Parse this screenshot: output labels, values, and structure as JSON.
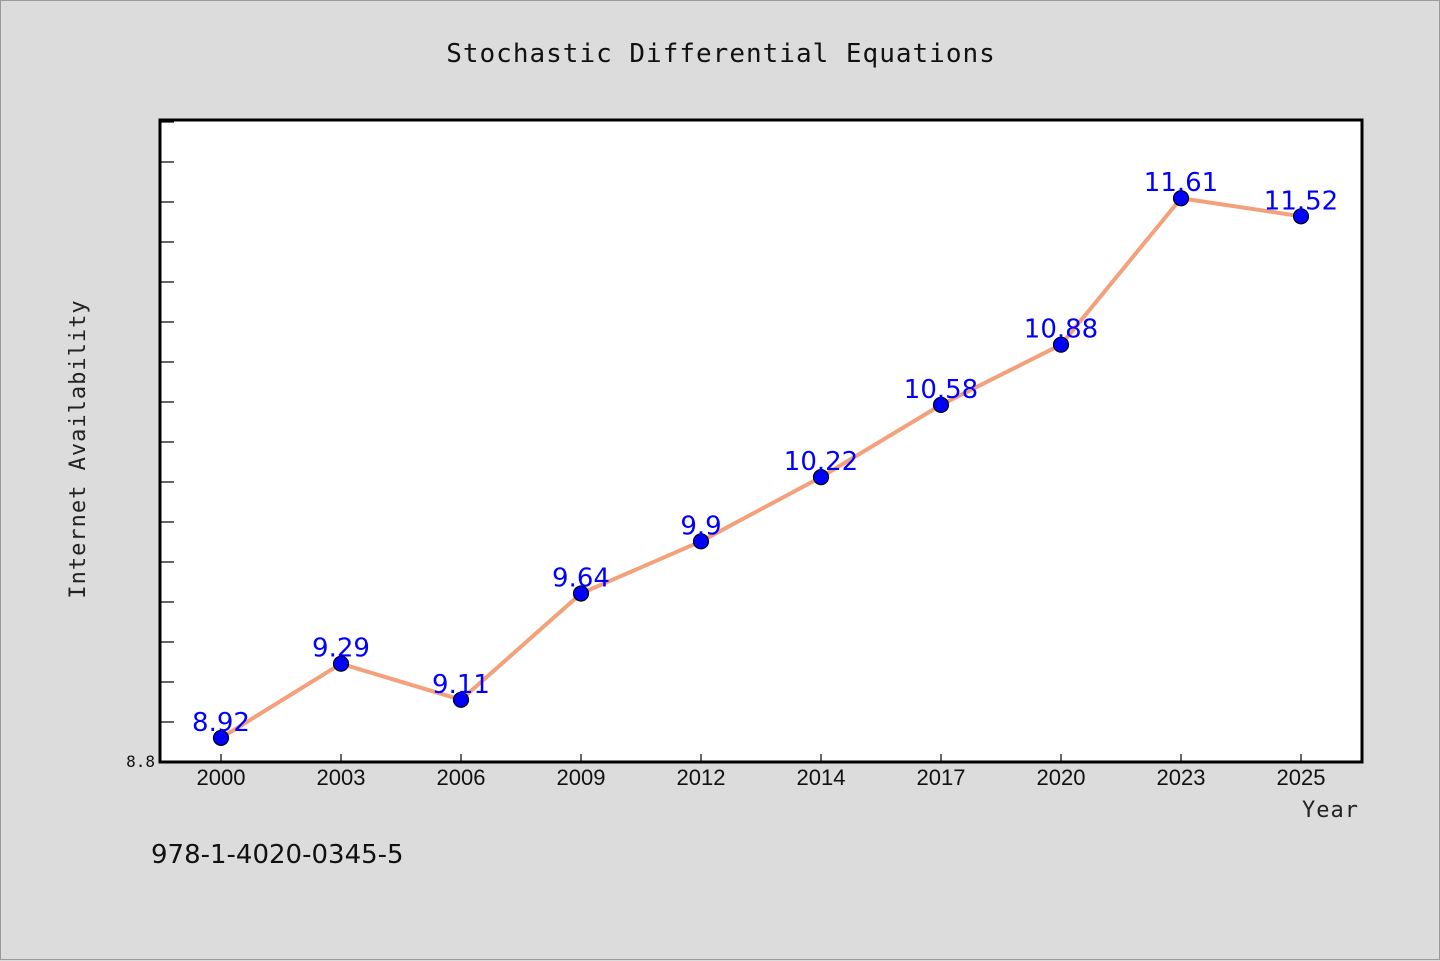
{
  "chart_data": {
    "type": "line",
    "title": "Stochastic Differential Equations",
    "xlabel": "Year",
    "ylabel": "Internet Availability",
    "categories": [
      "2000",
      "2003",
      "2006",
      "2009",
      "2012",
      "2014",
      "2017",
      "2020",
      "2023",
      "2025"
    ],
    "series": [
      {
        "values": [
          8.92,
          9.29,
          9.11,
          9.64,
          9.9,
          10.22,
          10.58,
          10.88,
          11.61,
          11.52
        ],
        "labels": [
          "8.92",
          "9.29",
          "9.11",
          "9.64",
          "9.9",
          "10.22",
          "10.58",
          "10.88",
          "11.61",
          "11.52"
        ],
        "line_color": "#f4a07a",
        "marker_color": "#0000ff"
      }
    ],
    "ylim": [
      8.8,
      12.0
    ],
    "y_tick_label": "8.8",
    "grid": false,
    "legend": "none"
  },
  "footer": {
    "isbn": "978-1-4020-0345-5"
  },
  "colors": {
    "background": "#dcdcdc",
    "plot_background": "#ffffff",
    "data_label": "#0000ff"
  }
}
